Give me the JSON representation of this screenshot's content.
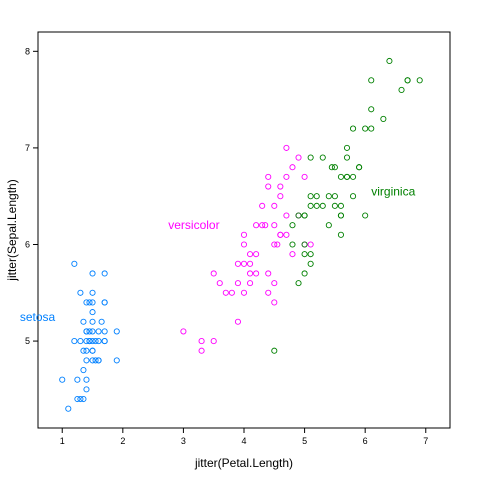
{
  "chart_data": {
    "type": "scatter",
    "title": "",
    "xlabel": "jitter(Petal.Length)",
    "ylabel": "jitter(Sepal.Length)",
    "xlim": [
      0.6,
      7.4
    ],
    "ylim": [
      4.1,
      8.2
    ],
    "x_ticks": [
      1,
      2,
      3,
      4,
      5,
      6,
      7
    ],
    "y_ticks": [
      5,
      6,
      7,
      8
    ],
    "grid": false,
    "legend": "none",
    "series": [
      {
        "name": "setosa",
        "color": "#0080ff",
        "label_at": [
          0.3,
          5.25
        ],
        "x": [
          1.0,
          1.1,
          1.2,
          1.2,
          1.25,
          1.3,
          1.3,
          1.35,
          1.35,
          1.4,
          1.4,
          1.4,
          1.4,
          1.4,
          1.4,
          1.45,
          1.45,
          1.45,
          1.5,
          1.5,
          1.5,
          1.5,
          1.5,
          1.5,
          1.5,
          1.5,
          1.5,
          1.5,
          1.55,
          1.6,
          1.6,
          1.6,
          1.6,
          1.65,
          1.7,
          1.7,
          1.7,
          1.7,
          1.7,
          1.7,
          1.9,
          1.9,
          1.3,
          1.35,
          1.4,
          1.45,
          1.25,
          1.35,
          1.55,
          1.4
        ],
        "y": [
          4.6,
          4.3,
          5.8,
          5.0,
          4.6,
          5.5,
          4.4,
          4.9,
          4.4,
          5.1,
          5.0,
          4.8,
          4.6,
          5.1,
          4.9,
          5.1,
          5.0,
          5.4,
          5.7,
          5.1,
          5.0,
          5.4,
          5.3,
          4.9,
          5.2,
          4.8,
          4.9,
          5.5,
          5.0,
          5.1,
          5.0,
          4.8,
          4.8,
          5.2,
          5.7,
          5.4,
          5.1,
          5.4,
          5.0,
          5.0,
          5.1,
          4.8,
          5.0,
          5.2,
          4.5,
          5.0,
          4.4,
          4.7,
          4.8,
          5.4
        ]
      },
      {
        "name": "versicolor",
        "color": "#ff00ff",
        "label_at": [
          2.75,
          6.2
        ],
        "x": [
          3.0,
          3.3,
          3.3,
          3.5,
          3.5,
          3.6,
          3.7,
          3.8,
          3.9,
          3.9,
          3.9,
          4.0,
          4.0,
          4.0,
          4.0,
          4.1,
          4.1,
          4.1,
          4.2,
          4.2,
          4.2,
          4.3,
          4.3,
          4.4,
          4.4,
          4.4,
          4.5,
          4.5,
          4.5,
          4.5,
          4.5,
          4.6,
          4.6,
          4.6,
          4.7,
          4.7,
          4.7,
          4.7,
          4.8,
          4.8,
          4.9,
          4.9,
          5.0,
          5.0,
          5.1,
          4.6,
          4.4,
          4.55,
          4.1,
          4.35
        ],
        "y": [
          5.1,
          4.9,
          5.0,
          5.0,
          5.7,
          5.6,
          5.5,
          5.5,
          5.2,
          5.6,
          5.8,
          5.5,
          6.0,
          6.1,
          5.8,
          5.6,
          5.7,
          5.9,
          5.7,
          5.9,
          6.2,
          6.2,
          6.4,
          6.7,
          6.6,
          5.5,
          5.4,
          6.4,
          6.2,
          6.0,
          5.6,
          6.1,
          6.5,
          6.1,
          7.0,
          6.1,
          6.7,
          6.3,
          5.9,
          6.8,
          6.9,
          6.3,
          6.0,
          6.7,
          6.0,
          6.6,
          5.7,
          6.0,
          5.8,
          6.2
        ]
      },
      {
        "name": "virginica",
        "color": "#008000",
        "label_at": [
          6.1,
          6.55
        ],
        "x": [
          4.5,
          4.8,
          4.8,
          4.9,
          4.9,
          5.0,
          5.0,
          5.0,
          5.1,
          5.1,
          5.1,
          5.1,
          5.1,
          5.2,
          5.3,
          5.3,
          5.4,
          5.5,
          5.5,
          5.5,
          5.6,
          5.6,
          5.6,
          5.6,
          5.7,
          5.7,
          5.8,
          5.8,
          5.8,
          5.9,
          6.0,
          6.0,
          6.1,
          6.1,
          6.1,
          6.3,
          6.4,
          6.6,
          6.7,
          6.7,
          6.9,
          5.7,
          5.0,
          5.2,
          5.45,
          5.6,
          5.0,
          5.4,
          5.7,
          5.9
        ],
        "y": [
          4.9,
          6.2,
          6.0,
          5.6,
          6.3,
          5.7,
          6.3,
          6.0,
          6.9,
          6.5,
          5.8,
          6.4,
          5.9,
          6.4,
          6.4,
          6.9,
          6.2,
          6.5,
          6.8,
          6.4,
          6.3,
          6.3,
          6.1,
          6.7,
          6.9,
          6.7,
          6.5,
          6.7,
          7.2,
          6.8,
          6.3,
          7.2,
          7.7,
          7.2,
          7.4,
          7.3,
          7.9,
          7.6,
          7.7,
          7.7,
          7.7,
          6.7,
          6.3,
          6.5,
          6.8,
          6.4,
          5.9,
          6.5,
          7.0,
          6.8
        ]
      }
    ]
  }
}
